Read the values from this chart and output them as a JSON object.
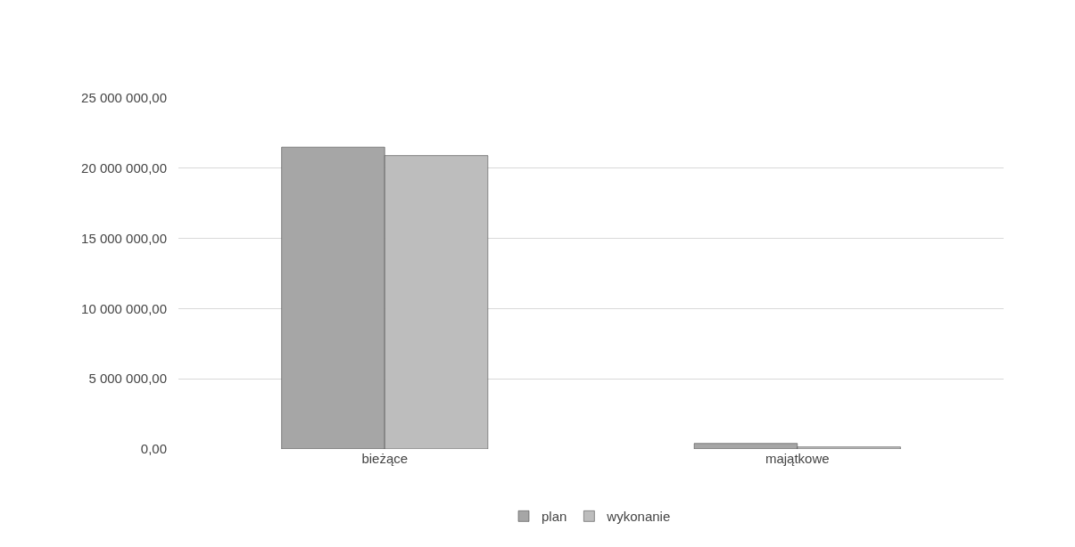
{
  "chart_data": {
    "type": "bar",
    "categories": [
      "bieżące",
      "majątkowe"
    ],
    "series": [
      {
        "name": "plan",
        "color": "#a6a6a6",
        "values": [
          21500000,
          400000
        ]
      },
      {
        "name": "wykonanie",
        "color": "#bdbdbd",
        "values": [
          20900000,
          150000
        ]
      }
    ],
    "ylim": [
      0,
      25000000
    ],
    "yticks": [
      {
        "value": 0,
        "label": "0,00"
      },
      {
        "value": 5000000,
        "label": "5 000 000,00"
      },
      {
        "value": 10000000,
        "label": "10 000 000,00"
      },
      {
        "value": 15000000,
        "label": "15 000 000,00"
      },
      {
        "value": 20000000,
        "label": "20 000 000,00"
      },
      {
        "value": 25000000,
        "label": "25 000 000,00"
      }
    ],
    "grid": "y",
    "legend": "bottom"
  }
}
